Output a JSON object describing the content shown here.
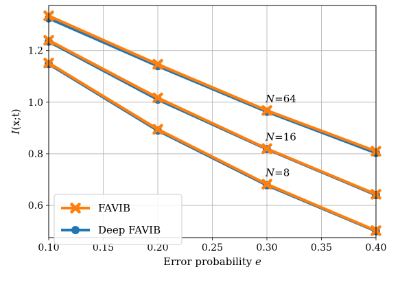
{
  "chart_data": {
    "type": "line",
    "xlabel": "Error probability e",
    "xlabel_parts": {
      "text": "Error probability ",
      "var": "e"
    },
    "ylabel": "I(x;t)",
    "ylabel_parts": {
      "var": "I",
      "rest": "(x;t)"
    },
    "xlim": [
      0.1,
      0.4
    ],
    "ylim": [
      0.475,
      1.375
    ],
    "xticks": [
      0.1,
      0.15,
      0.2,
      0.25,
      0.3,
      0.35,
      0.4
    ],
    "xtick_labels": [
      "0.10",
      "0.15",
      "0.20",
      "0.25",
      "0.30",
      "0.35",
      "0.40"
    ],
    "yticks": [
      0.6,
      0.8,
      1.0,
      1.2
    ],
    "ytick_labels": [
      "0.6",
      "0.8",
      "1.0",
      "1.2"
    ],
    "grid": true,
    "legend_position": "bottom-left",
    "colors": {
      "favib": "#ff7f0e",
      "deep_favib": "#1f77b4"
    },
    "x": [
      0.1,
      0.2,
      0.3,
      0.4
    ],
    "groups": [
      {
        "label": "N=64",
        "label_var": "N",
        "label_rest": "=64",
        "favib": [
          1.335,
          1.147,
          0.968,
          0.81
        ],
        "deep_favib": [
          1.325,
          1.14,
          0.963,
          0.803
        ]
      },
      {
        "label": "N=16",
        "label_var": "N",
        "label_rest": "=16",
        "favib": [
          1.24,
          1.017,
          0.82,
          0.643
        ],
        "deep_favib": [
          1.235,
          1.01,
          0.818,
          0.64
        ]
      },
      {
        "label": "N=8",
        "label_var": "N",
        "label_rest": "=8",
        "favib": [
          1.152,
          0.895,
          0.682,
          0.502
        ],
        "deep_favib": [
          1.148,
          0.89,
          0.678,
          0.5
        ]
      }
    ],
    "legend": [
      {
        "name": "FAVIB",
        "color": "#ff7f0e",
        "marker": "x"
      },
      {
        "name": "Deep FAVIB",
        "color": "#1f77b4",
        "marker": "o"
      }
    ]
  }
}
